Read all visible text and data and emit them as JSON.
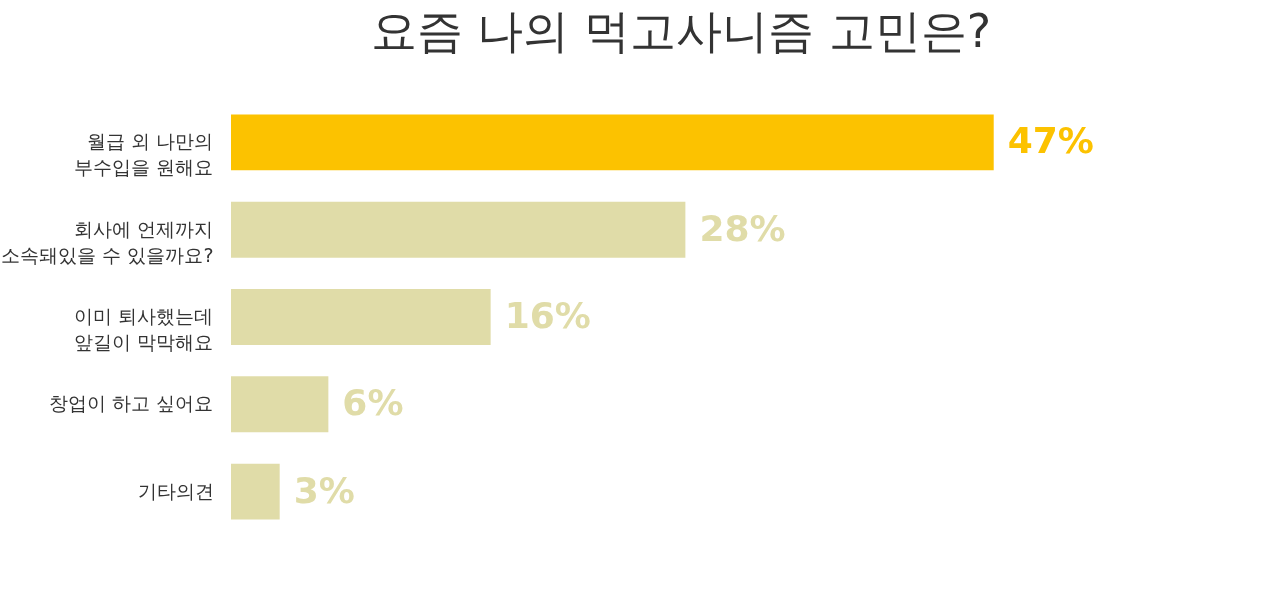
{
  "chart_data": {
    "type": "bar",
    "orientation": "horizontal",
    "title": "요즘 나의 먹고사니즘 고민은?",
    "categories": [
      "월급 외 나만의\n부수입을 원해요",
      "회사에 언제까지\n소속돼있을 수 있을까요?",
      "이미 퇴사했는데\n앞길이 막막해요",
      "창업이  하고 싶어요",
      "기타의견"
    ],
    "values": [
      47,
      28,
      16,
      6,
      3
    ],
    "colors": [
      "#fcc200",
      "#e0dca8",
      "#e0dca8",
      "#e0dca8",
      "#e0dca8"
    ],
    "value_labels": [
      "47%",
      "28%",
      "16%",
      "6%",
      "3%"
    ]
  }
}
